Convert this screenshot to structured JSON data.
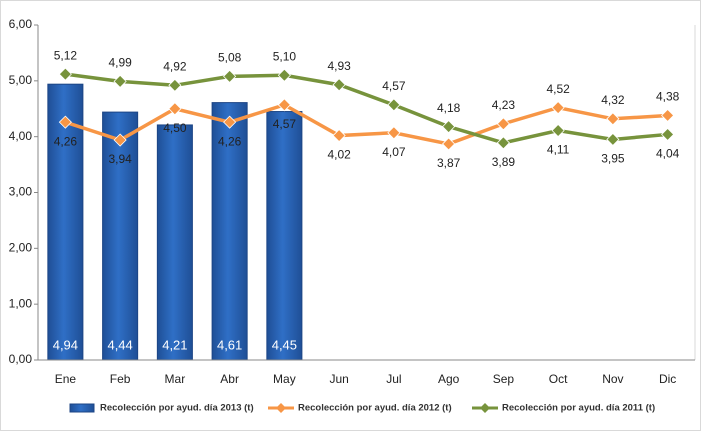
{
  "chart_data": {
    "type": "combo",
    "categories": [
      "Ene",
      "Feb",
      "Mar",
      "Abr",
      "May",
      "Jun",
      "Jul",
      "Ago",
      "Sep",
      "Oct",
      "Nov",
      "Dic"
    ],
    "ylim": [
      0,
      6
    ],
    "yticks": [
      {
        "value": 0,
        "label": "0,00"
      },
      {
        "value": 1,
        "label": "1,00"
      },
      {
        "value": 2,
        "label": "2,00"
      },
      {
        "value": 3,
        "label": "3,00"
      },
      {
        "value": 4,
        "label": "4,00"
      },
      {
        "value": 5,
        "label": "5,00"
      },
      {
        "value": 6,
        "label": "6,00"
      }
    ],
    "grid": false,
    "legend": "bottom",
    "series": [
      {
        "name": "Recolección por ayud. día 2013 (t)",
        "kind": "bar",
        "color": "#2f6fc6",
        "values": [
          4.94,
          4.44,
          4.21,
          4.61,
          4.45,
          null,
          null,
          null,
          null,
          null,
          null,
          null
        ],
        "value_labels": [
          "4,94",
          "4,44",
          "4,21",
          "4,61",
          "4,45",
          null,
          null,
          null,
          null,
          null,
          null,
          null
        ]
      },
      {
        "name": "Recolección por ayud. día 2012 (t)",
        "kind": "line",
        "color": "#f79646",
        "values": [
          4.26,
          3.94,
          4.5,
          4.26,
          4.57,
          4.02,
          4.07,
          3.87,
          4.23,
          4.52,
          4.32,
          4.38
        ],
        "value_labels": [
          "4,26",
          "3,94",
          "4,50",
          "4,26",
          "4,57",
          "4,02",
          "4,07",
          "3,87",
          "4,23",
          "4,52",
          "4,32",
          "4,38"
        ]
      },
      {
        "name": "Recolección por ayud. día 2011 (t)",
        "kind": "line",
        "color": "#77933c",
        "values": [
          5.12,
          4.99,
          4.92,
          5.08,
          5.1,
          4.93,
          4.57,
          4.18,
          3.89,
          4.11,
          3.95,
          4.04
        ],
        "value_labels": [
          "5,12",
          "4,99",
          "4,92",
          "5,08",
          "5,10",
          "4,93",
          "4,57",
          "4,18",
          "3,89",
          "4,11",
          "3,95",
          "4,04"
        ]
      }
    ]
  }
}
